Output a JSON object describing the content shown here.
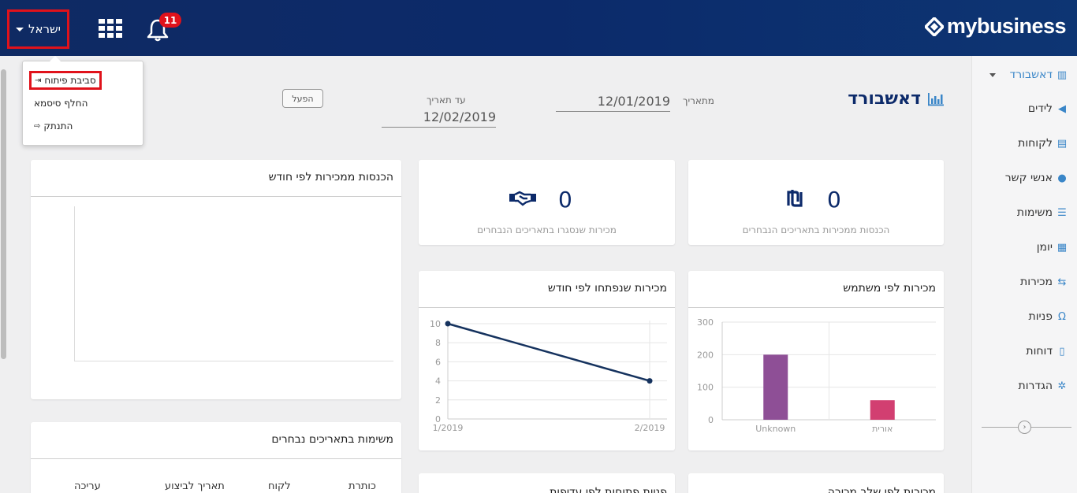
{
  "header": {
    "user_label": "ישראל",
    "notifications_count": "11",
    "logo_text": "mybusiness"
  },
  "user_menu": {
    "items": [
      {
        "label": "סביבת פיתוח",
        "icon": "sign-in-icon"
      },
      {
        "label": "החלף סיסמא",
        "icon": ""
      },
      {
        "label": "התנתק",
        "icon": "sign-out-icon"
      }
    ]
  },
  "sidebar": {
    "items": [
      {
        "label": "דאשבורד",
        "icon": "bar-chart-icon",
        "active": true
      },
      {
        "label": "לידים",
        "icon": "megaphone-icon"
      },
      {
        "label": "לקוחות",
        "icon": "building-icon"
      },
      {
        "label": "אנשי קשר",
        "icon": "user-icon"
      },
      {
        "label": "משימות",
        "icon": "list-icon"
      },
      {
        "label": "יומן",
        "icon": "calendar-icon"
      },
      {
        "label": "מכירות",
        "icon": "handshake-icon"
      },
      {
        "label": "פניות",
        "icon": "headset-icon"
      },
      {
        "label": "דוחות",
        "icon": "file-icon"
      },
      {
        "label": "הגדרות",
        "icon": "gear-icon"
      }
    ]
  },
  "dashboard": {
    "title": "דאשבורד",
    "from_label": "מתאריך",
    "from_value": "12/01/2019",
    "to_label": "עד תאריך",
    "to_value": "12/02/2019",
    "run_button": "הפעל"
  },
  "cards": {
    "income_kpi": {
      "value": "0",
      "label": "הכנסות ממכירות בתאריכים הנבחרים"
    },
    "closed_sales_kpi": {
      "value": "0",
      "label": "מכירות שנסגרו בתאריכים הנבחרים"
    },
    "income_by_month": {
      "title": "הכנסות ממכירות לפי חודש"
    },
    "sales_by_user": {
      "title": "מכירות לפי משתמש"
    },
    "opened_by_month": {
      "title": "מכירות שנפתחו לפי חודש"
    },
    "tasks": {
      "title": "משימות בתאריכים נבחרים",
      "columns": [
        "כותרת",
        "לקוח",
        "תאריך לביצוע",
        "עריכה"
      ]
    },
    "sales_by_stage": {
      "title": "מכירות לפי שלב מכירה"
    },
    "open_inquiries": {
      "title": "פניות פתוחות לפי עדיפות"
    }
  },
  "chart_data": [
    {
      "type": "bar",
      "title": "מכירות לפי משתמש",
      "categories": [
        "Unknown",
        "אורית"
      ],
      "values": [
        200,
        60
      ],
      "colors": [
        "#8e4f96",
        "#d23f71"
      ],
      "ylim": [
        0,
        300
      ],
      "yticks": [
        0,
        100,
        200,
        300
      ]
    },
    {
      "type": "line",
      "title": "מכירות שנפתחו לפי חודש",
      "categories": [
        "1/2019",
        "2/2019"
      ],
      "values": [
        10,
        4
      ],
      "color": "#15325e",
      "ylim": [
        0,
        10
      ],
      "yticks": [
        0,
        2,
        4,
        6,
        8,
        10
      ]
    }
  ],
  "colors": {
    "header_bg": "#0c2a6a",
    "accent": "#3a86c8",
    "highlight_red": "#e0121b"
  }
}
